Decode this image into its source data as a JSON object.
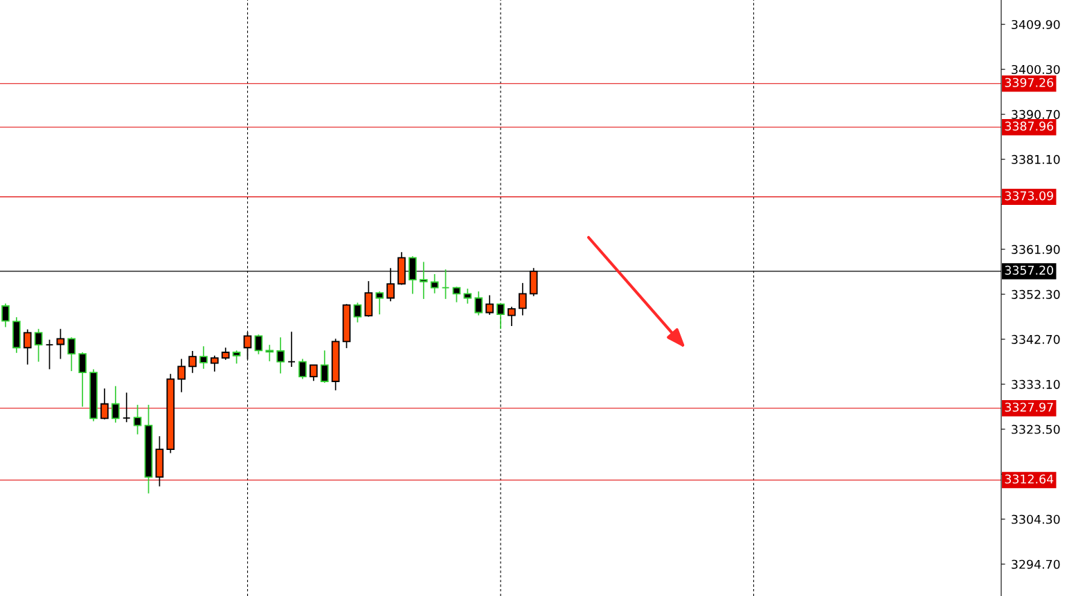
{
  "chart_data": {
    "type": "candlestick",
    "categories": [
      null,
      null,
      null,
      null,
      null,
      null,
      null,
      null,
      null,
      null,
      null,
      null,
      null,
      null,
      null,
      null,
      null,
      null,
      null,
      null,
      null,
      null,
      null,
      null,
      null,
      null,
      null,
      null,
      null,
      null,
      null,
      null,
      null,
      null,
      null,
      null,
      null,
      null,
      null,
      null,
      null,
      null,
      null,
      null,
      null,
      null,
      null,
      null,
      null,
      null,
      null,
      null,
      null,
      null,
      null,
      null,
      null,
      null,
      null,
      null,
      null,
      null,
      null,
      null,
      null,
      null,
      null,
      null,
      null,
      null,
      null,
      null,
      null,
      null,
      null,
      null,
      null,
      null,
      null,
      null,
      null,
      null,
      null,
      null,
      null,
      null,
      null,
      null,
      null,
      null,
      null
    ],
    "ohlc": [
      [
        3349.8,
        3350.3,
        3345.3,
        3346.6
      ],
      [
        3346.5,
        3347.4,
        3339.8,
        3340.9
      ],
      [
        3340.9,
        3344.8,
        3337.3,
        3344.1
      ],
      [
        3344.1,
        3344.9,
        3337.9,
        3341.5
      ],
      [
        3341.5,
        3342.6,
        3336.3,
        3341.5
      ],
      [
        3341.6,
        3344.9,
        3338.5,
        3342.8
      ],
      [
        3342.8,
        3343.1,
        3335.9,
        3339.6
      ],
      [
        3339.6,
        3339.9,
        3328.3,
        3335.6
      ],
      [
        3335.6,
        3336.3,
        3325.2,
        3325.8
      ],
      [
        3325.8,
        3332.2,
        3325.6,
        3328.9
      ],
      [
        3328.9,
        3332.7,
        3324.9,
        3325.8
      ],
      [
        3325.9,
        3331.3,
        3325.0,
        3325.9
      ],
      [
        3326.0,
        3328.7,
        3322.4,
        3324.3
      ],
      [
        3324.3,
        3328.7,
        3309.8,
        3313.3
      ],
      [
        3313.3,
        3322.0,
        3311.3,
        3319.2
      ],
      [
        3319.2,
        3335.3,
        3318.4,
        3334.2
      ],
      [
        3334.2,
        3338.5,
        3331.4,
        3336.9
      ],
      [
        3336.9,
        3340.2,
        3335.5,
        3339.0
      ],
      [
        3339.0,
        3341.2,
        3336.4,
        3337.7
      ],
      [
        3337.6,
        3339.2,
        3335.8,
        3338.7
      ],
      [
        3338.7,
        3340.9,
        3338.3,
        3339.9
      ],
      [
        3339.9,
        3340.3,
        3337.5,
        3339.2
      ],
      [
        3340.9,
        3344.2,
        3338.4,
        3343.4
      ],
      [
        3343.4,
        3343.7,
        3339.5,
        3340.3
      ],
      [
        3340.3,
        3341.5,
        3338.0,
        3340.0
      ],
      [
        3340.2,
        3343.1,
        3335.4,
        3337.9
      ],
      [
        3337.9,
        3344.3,
        3336.8,
        3337.9
      ],
      [
        3337.9,
        3338.5,
        3334.2,
        3334.7
      ],
      [
        3334.7,
        3337.2,
        3333.8,
        3337.2
      ],
      [
        3337.2,
        3340.3,
        3333.4,
        3333.7
      ],
      [
        3333.7,
        3342.8,
        3331.8,
        3342.2
      ],
      [
        3342.2,
        3350.2,
        3340.8,
        3350.0
      ],
      [
        3350.0,
        3350.5,
        3346.3,
        3347.5
      ],
      [
        3347.7,
        3355.1,
        3347.5,
        3352.6
      ],
      [
        3352.6,
        3352.9,
        3348.0,
        3351.5
      ],
      [
        3351.5,
        3357.9,
        3350.8,
        3354.5
      ],
      [
        3354.5,
        3361.3,
        3354.3,
        3360.1
      ],
      [
        3360.1,
        3360.4,
        3352.4,
        3355.4
      ],
      [
        3355.4,
        3359.2,
        3351.3,
        3355.0
      ],
      [
        3354.9,
        3356.6,
        3352.5,
        3353.7
      ],
      [
        3353.7,
        3357.6,
        3351.3,
        3353.7
      ],
      [
        3353.7,
        3353.9,
        3350.6,
        3352.4
      ],
      [
        3352.4,
        3353.5,
        3350.3,
        3351.5
      ],
      [
        3351.5,
        3352.9,
        3347.8,
        3348.4
      ],
      [
        3348.4,
        3352.1,
        3347.9,
        3350.2
      ],
      [
        3350.2,
        3350.4,
        3344.9,
        3348.0
      ],
      [
        3347.8,
        3349.6,
        3345.5,
        3349.2
      ],
      [
        3349.3,
        3354.7,
        3347.8,
        3352.4
      ],
      [
        3352.4,
        3357.9,
        3351.9,
        3357.2
      ],
      null,
      null,
      null,
      null,
      null,
      null,
      null,
      null,
      null,
      null,
      null,
      null,
      null,
      null,
      null,
      null,
      null,
      null,
      null,
      null,
      null,
      null,
      null,
      null,
      null,
      null,
      null,
      null,
      null,
      null,
      null,
      null,
      null,
      null,
      null,
      null,
      null,
      null,
      null,
      null,
      null,
      null
    ],
    "color": "#ff4500",
    "colors": [
      "#32cd32",
      "#32cd32",
      "#000000",
      "#32cd32",
      "#000000",
      "#000000",
      "#32cd32",
      "#32cd32",
      "#32cd32",
      "#000000",
      "#32cd32",
      "#000000",
      "#32cd32",
      "#32cd32",
      "#000000",
      "#000000",
      "#000000",
      "#000000",
      "#32cd32",
      "#000000",
      "#000000",
      "#32cd32",
      "#000000",
      "#32cd32",
      "#32cd32",
      "#32cd32",
      "#000000",
      "#32cd32",
      "#000000",
      "#32cd32",
      "#000000",
      "#000000",
      "#32cd32",
      "#000000",
      "#32cd32",
      "#000000",
      "#000000",
      "#32cd32",
      "#32cd32",
      "#32cd32",
      "#32cd32",
      "#32cd32",
      "#32cd32",
      "#32cd32",
      "#000000",
      "#32cd32",
      "#000000",
      "#000000",
      "#000000",
      null,
      null,
      null,
      null,
      null,
      null,
      null,
      null,
      null,
      null,
      null,
      null,
      null,
      null,
      null,
      null,
      null,
      null,
      null,
      null,
      null,
      null,
      null,
      null,
      null,
      null,
      null,
      null,
      null,
      null,
      null,
      null,
      null,
      null,
      null,
      null,
      null,
      null,
      null,
      null,
      null,
      null
    ],
    "ylim": [
      3287.9,
      3415.1
    ],
    "yticks": [
      {
        "value": 3409.9,
        "label": "3409.90"
      },
      {
        "value": 3400.3,
        "label": "3400.30"
      },
      {
        "value": 3390.7,
        "label": "3390.70"
      },
      {
        "value": 3381.1,
        "label": "3381.10"
      },
      {
        "value": 3371.5,
        "label": null
      },
      {
        "value": 3361.9,
        "label": "3361.90"
      },
      {
        "value": 3352.3,
        "label": "3352.30"
      },
      {
        "value": 3342.7,
        "label": "3342.70"
      },
      {
        "value": 3333.1,
        "label": "3333.10"
      },
      {
        "value": 3323.5,
        "label": "3323.50"
      },
      {
        "value": 3313.9,
        "label": null
      },
      {
        "value": 3304.3,
        "label": "3304.30"
      },
      {
        "value": 3294.7,
        "label": "3294.70"
      }
    ],
    "ref_lines": [
      {
        "axis": "y",
        "value": 3397.26,
        "label": "3397.26",
        "color": "#e00000"
      },
      {
        "axis": "y",
        "value": 3387.96,
        "label": "3387.96",
        "color": "#e00000"
      },
      {
        "axis": "y",
        "value": 3373.09,
        "label": "3373.09",
        "color": "#e00000"
      },
      {
        "axis": "y",
        "value": 3357.2,
        "label": "3357.20",
        "color": "#000000"
      },
      {
        "axis": "y",
        "value": 3327.97,
        "label": "3327.97",
        "color": "#e00000"
      },
      {
        "axis": "y",
        "value": 3312.64,
        "label": "3312.64",
        "color": "#e00000"
      }
    ],
    "grid": "x",
    "tick_labels": "y"
  }
}
